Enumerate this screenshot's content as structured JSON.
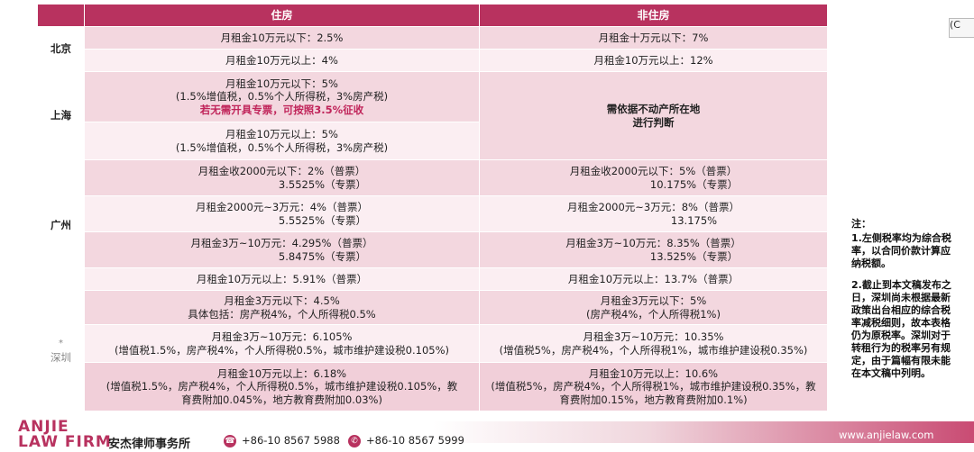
{
  "header": {
    "col_residential": "住房",
    "col_nonresidential": "非住房"
  },
  "rows": {
    "bj1": {
      "city": "北京",
      "res": "月租金10万元以下：2.5%",
      "non": "月租金十万元以下：7%"
    },
    "bj2": {
      "res": "月租金10万元以上：4%",
      "non": "月租金10万元以上：12%"
    },
    "sh1": {
      "city": "上海",
      "res_l1": "月租金10万元以下：5%",
      "res_l2": "(1.5%增值税，0.5%个人所得税，3%房产税)",
      "res_l3": "若无需开具专票，可按照3.5%征收",
      "non_l1": "需依据不动产所在地",
      "non_l2": "进行判断"
    },
    "sh2": {
      "res_l1": "月租金10万元以上：5%",
      "res_l2": "(1.5%增值税，0.5%个人所得税，3%房产税)"
    },
    "gz1": {
      "city": "广州",
      "res_l1": "月租金收2000元以下：2%（普票）",
      "res_l2": "3.5525%（专票）",
      "non_l1": "月租金收2000元以下：5%（普票）",
      "non_l2": "10.175%（专票）"
    },
    "gz2": {
      "res_l1": "月租金2000元~3万元：4%（普票）",
      "res_l2": "5.5525%（专票）",
      "non_l1": "月租金2000元~3万元：8%（普票）",
      "non_l2": "13.175%"
    },
    "gz3": {
      "res_l1": "月租金3万~10万元：4.295%（普票）",
      "res_l2": "5.8475%（专票）",
      "non_l1": "月租金3万~10万元：8.35%（普票）",
      "non_l2": "13.525%（专票）"
    },
    "gz4": {
      "res": "月租金10万元以上：5.91%（普票）",
      "non": "月租金10万元以上：13.7%（普票）"
    },
    "sz1": {
      "city_mark": "*",
      "city": "深圳",
      "res_l1": "月租金3万元以下：4.5%",
      "res_l2": "具体包括：房产税4%，个人所得税0.5%",
      "non_l1": "月租金3万元以下：5%",
      "non_l2": "(房产税4%，个人所得税1%)"
    },
    "sz2": {
      "res_l1": "月租金3万~10万元：6.105%",
      "res_l2": "(增值税1.5%，房产税4%，个人所得税0.5%，城市维护建设税0.105%)",
      "non_l1": "月租金3万~10万元：10.35%",
      "non_l2": "(增值税5%，房产税4%，个人所得税1%，城市维护建设税0.35%)"
    },
    "sz3": {
      "res_l1": "月租金10万元以上：6.18%",
      "res_l2": "(增值税1.5%，房产税4%，个人所得税0.5%，城市维护建设税0.105%，教",
      "res_l3": "育费附加0.045%，地方教育费附加0.03%)",
      "non_l1": "月租金10万元以上：10.6%",
      "non_l2": "(增值税5%，房产税4%，个人所得税1%，城市维护建设税0.35%，教",
      "non_l3": "育费附加0.15%，地方教育费附加0.1%)"
    }
  },
  "note": {
    "title": "注：",
    "p1": "1.左侧税率均为综合税率，以合同价款计算应纳税额。",
    "p2": "2.截止到本文稿发布之日，深圳尚未根据最新政策出台相应的综合税率减税细则，故本表格仍为原税率。深圳对于转租行为的税率另有规定，由于篇幅有限未能在本文稿中列明。"
  },
  "clip": {
    "label": "(C"
  },
  "footer": {
    "logo_line1": "ANJIE",
    "logo_line2": "LAW FIRM",
    "firm_name": "安杰律师事务所",
    "tel1": "+86-10 8567 5988",
    "tel2": "+86-10 8567 5999",
    "website": "www.anjielaw.com"
  }
}
